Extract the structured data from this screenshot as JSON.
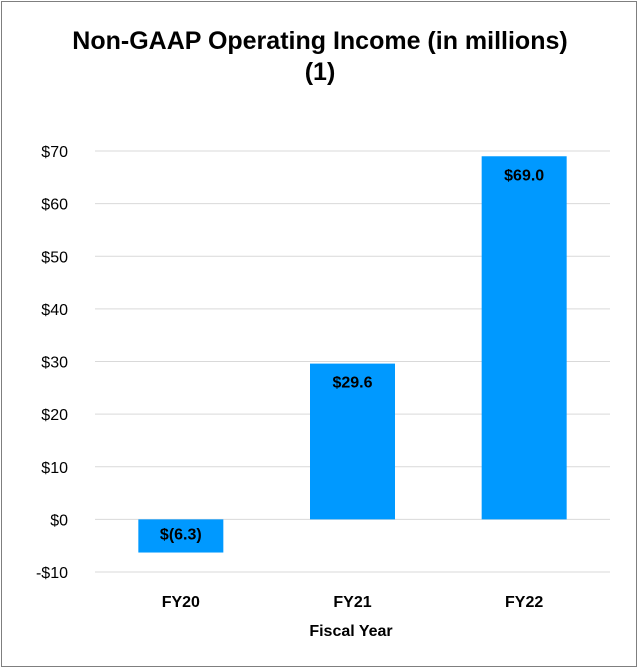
{
  "chart_data": {
    "type": "bar",
    "title": "Non-GAAP Operating Income (in millions)(1)",
    "xlabel": "Fiscal Year",
    "ylabel": "",
    "categories": [
      "FY20",
      "FY21",
      "FY22"
    ],
    "values": [
      -6.3,
      29.6,
      69.0
    ],
    "data_labels": [
      "$(6.3)",
      "$29.6",
      "$69.0"
    ],
    "ylim": [
      -10,
      70
    ],
    "y_ticks": [
      -10,
      0,
      10,
      20,
      30,
      40,
      50,
      60,
      70
    ],
    "y_tick_labels": [
      "-$10",
      "$0",
      "$10",
      "$20",
      "$30",
      "$40",
      "$50",
      "$60",
      "$70"
    ],
    "grid": true,
    "bar_color": "#0099FF"
  }
}
